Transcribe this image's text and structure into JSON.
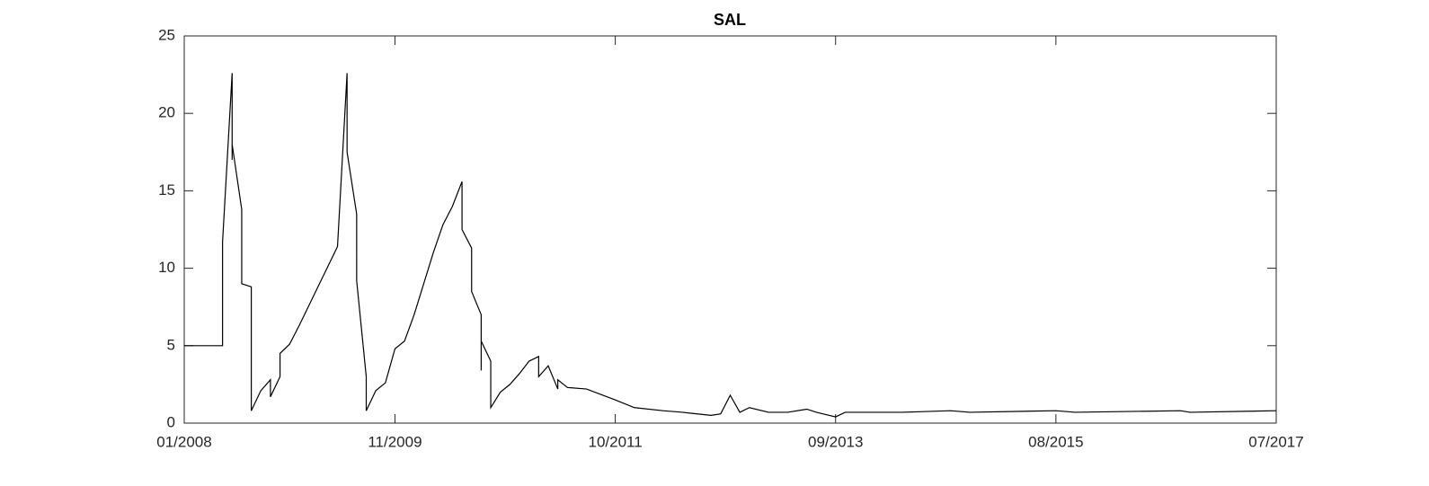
{
  "chart_data": {
    "type": "line",
    "title": "SAL",
    "x": [
      "2008-01",
      "2008-05",
      "2008-05",
      "2008-06",
      "2008-06",
      "2008-06",
      "2008-07",
      "2008-07",
      "2008-08",
      "2008-08",
      "2008-08",
      "2008-08",
      "2008-09",
      "2008-10",
      "2008-10",
      "2008-11",
      "2008-11",
      "2008-12",
      "2009-01",
      "2009-05",
      "2009-06",
      "2009-06",
      "2009-07",
      "2009-07",
      "2009-08",
      "2009-08",
      "2009-09",
      "2009-10",
      "2009-11",
      "2009-12",
      "2010-01",
      "2010-02",
      "2010-03",
      "2010-04",
      "2010-05",
      "2010-06",
      "2010-06",
      "2010-07",
      "2010-07",
      "2010-08",
      "2010-08",
      "2010-08",
      "2010-09",
      "2010-09",
      "2010-10",
      "2010-11",
      "2010-12",
      "2011-01",
      "2011-02",
      "2011-02",
      "2011-03",
      "2011-04",
      "2011-04",
      "2011-05",
      "2011-07",
      "2011-10",
      "2011-12",
      "2012-03",
      "2012-05",
      "2012-08",
      "2012-09",
      "2012-10",
      "2012-11",
      "2012-12",
      "2013-02",
      "2013-04",
      "2013-06",
      "2013-07",
      "2013-09",
      "2013-10",
      "2014-04",
      "2014-09",
      "2014-11",
      "2015-08",
      "2015-10",
      "2016-09",
      "2016-10",
      "2017-07"
    ],
    "series": [
      {
        "name": "SAL",
        "color": "#000000",
        "values": [
          5,
          5,
          11.7,
          22.6,
          17,
          18,
          13.8,
          9,
          8.8,
          2.5,
          3.8,
          0.8,
          2.1,
          2.8,
          1.7,
          3.0,
          4.5,
          5.1,
          6.3,
          11.4,
          22.6,
          17.5,
          13.5,
          9.2,
          3.0,
          0.8,
          2.1,
          2.6,
          4.8,
          5.3,
          7,
          9,
          11,
          12.8,
          14,
          15.6,
          12.5,
          11.3,
          8.5,
          7,
          3.4,
          5.3,
          4,
          1.0,
          2.0,
          2.5,
          3.2,
          4.0,
          4.3,
          3.0,
          3.7,
          2.2,
          2.8,
          2.3,
          2.2,
          1.5,
          1.0,
          0.8,
          0.7,
          0.5,
          0.6,
          1.8,
          0.7,
          1.0,
          0.7,
          0.7,
          0.9,
          0.7,
          0.4,
          0.7,
          0.7,
          0.8,
          0.7,
          0.8,
          0.7,
          0.8,
          0.7,
          0.8
        ]
      }
    ],
    "xlim": [
      "2008-01",
      "2017-07"
    ],
    "xticks": [
      {
        "value": "2008-01",
        "label": "01/2008"
      },
      {
        "value": "2009-11",
        "label": "11/2009"
      },
      {
        "value": "2011-10",
        "label": "10/2011"
      },
      {
        "value": "2013-09",
        "label": "09/2013"
      },
      {
        "value": "2015-08",
        "label": "08/2015"
      },
      {
        "value": "2017-07",
        "label": "07/2017"
      }
    ],
    "ylim": [
      0,
      25
    ],
    "yticks": [
      0,
      5,
      10,
      15,
      20,
      25
    ],
    "grid": false
  }
}
